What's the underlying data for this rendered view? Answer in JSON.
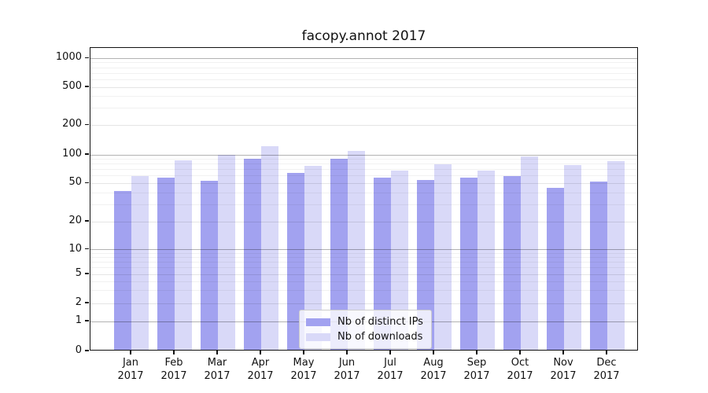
{
  "title": "facopy.annot 2017",
  "chart_data": {
    "type": "bar",
    "categories": [
      "Jan 2017",
      "Feb 2017",
      "Mar 2017",
      "Apr 2017",
      "May 2017",
      "Jun 2017",
      "Jul 2017",
      "Aug 2017",
      "Sep 2017",
      "Oct 2017",
      "Nov 2017",
      "Dec 2017"
    ],
    "series": [
      {
        "name": "Nb of distinct IPs",
        "color": "#a2a2f0",
        "values": [
          40,
          55,
          51,
          87,
          62,
          87,
          55,
          52,
          55,
          58,
          43,
          50
        ]
      },
      {
        "name": "Nb of downloads",
        "color": "#d9d9f8",
        "values": [
          57,
          85,
          97,
          119,
          74,
          105,
          66,
          77,
          66,
          92,
          75,
          83
        ]
      }
    ],
    "title": "facopy.annot 2017",
    "xlabel": "",
    "ylabel": "",
    "yscale": "symlog",
    "ylim": [
      0,
      1300
    ],
    "yticks": [
      0,
      1,
      2,
      5,
      10,
      20,
      50,
      100,
      200,
      500,
      1000
    ],
    "ytick_labels": [
      "0",
      "1",
      "2",
      "5",
      "10",
      "20",
      "50",
      "100",
      "200",
      "500",
      "1000"
    ],
    "grid": "on",
    "legend_position": "inside lower-center",
    "colors": {
      "grid_major": "rgba(0,0,0,0.30)",
      "grid_sub": "rgba(0,0,0,0.10)",
      "grid_minor": "rgba(0,0,0,0.055)",
      "spine": "#111111",
      "background": "#ffffff"
    }
  },
  "legend": {
    "items": [
      "Nb of distinct IPs",
      "Nb of downloads"
    ]
  }
}
